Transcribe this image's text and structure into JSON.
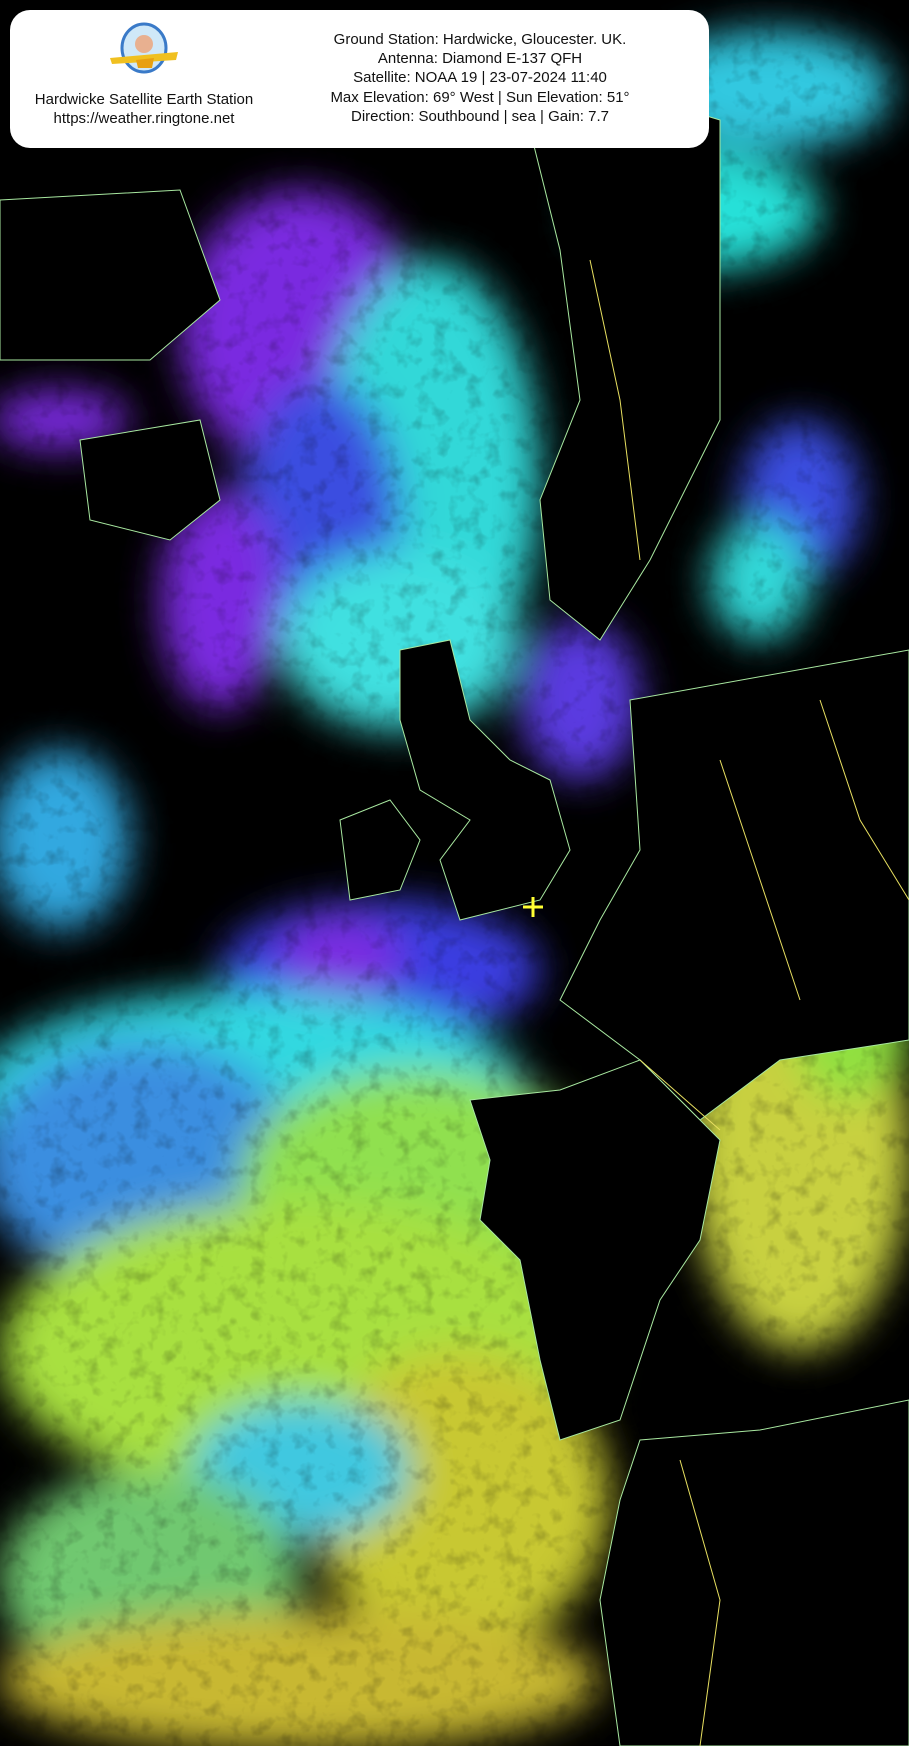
{
  "header": {
    "logo_name": "station-logo",
    "station_name": "Hardwicke Satellite Earth Station",
    "station_url": "https://weather.ringtone.net"
  },
  "pass_info": {
    "ground_station": "Ground Station: Hardwicke, Gloucester. UK.",
    "antenna": "Antenna: Diamond E-137 QFH",
    "satellite": "Satellite: NOAA 19 | 23-07-2024 11:40",
    "elevation": "Max Elevation: 69° West | Sun Elevation: 51°",
    "direction": "Direction: Southbound | sea | Gain: 7.7"
  },
  "image": {
    "type": "NOAA APT sea surface temperature false-colour image",
    "marker_icon": "crosshair-icon",
    "marker_color": "#ffff33",
    "border_color": "#e8e060",
    "coastline_color": "#a8e8a0",
    "palette": [
      "#7a2ae0",
      "#3a4ee0",
      "#30e8e0",
      "#40c8f0",
      "#80e060",
      "#c8e040",
      "#e0c020"
    ]
  }
}
